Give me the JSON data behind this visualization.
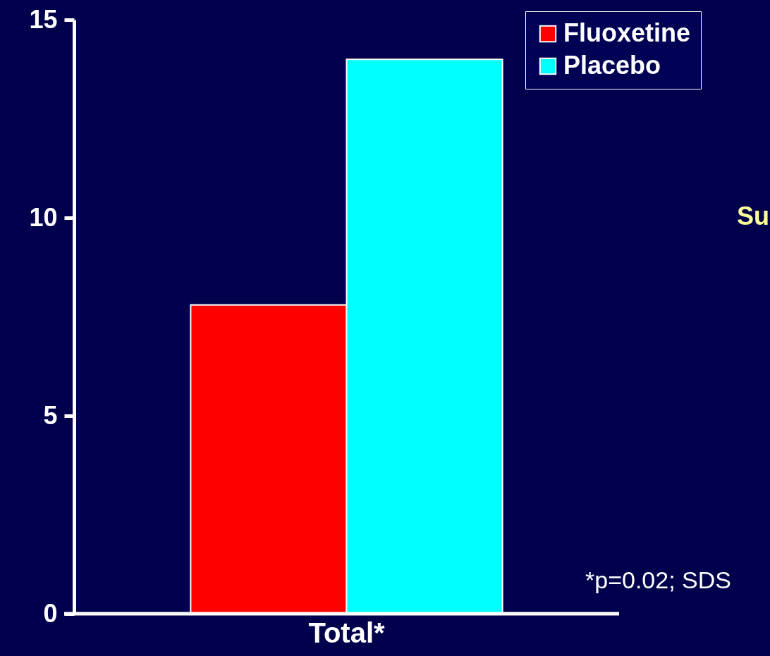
{
  "chart_data": {
    "type": "bar",
    "categories": [
      "Total*"
    ],
    "series": [
      {
        "name": "Fluoxetine",
        "color": "#ff0000",
        "values": [
          7.8
        ]
      },
      {
        "name": "Placebo",
        "color": "#00ffff",
        "values": [
          14.0
        ]
      }
    ],
    "ylim": [
      0,
      15
    ],
    "yticks": [
      0,
      5,
      10,
      15
    ],
    "grid": false,
    "legend": "top right",
    "annotations": [
      "Su",
      "*p=0.02; SDS"
    ]
  }
}
